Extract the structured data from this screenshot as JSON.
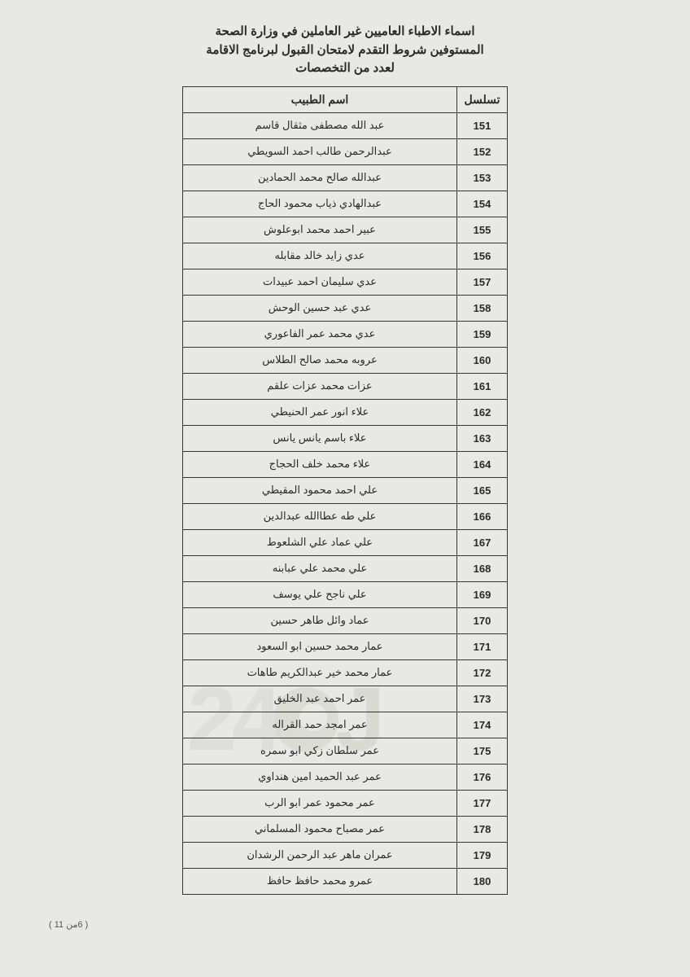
{
  "header": {
    "line1": "اسماء الاطباء العاميين غير العاملين في وزارة الصحة",
    "line2": "المستوفين شروط التقدم لامتحان القبول لبرنامج الاقامة",
    "line3": "لعدد من التخصصات"
  },
  "columns": {
    "seq": "تسلسل",
    "name": "اسم الطبيب"
  },
  "rows": [
    {
      "seq": "151",
      "name": "عبد الله مصطفى مثقال قاسم"
    },
    {
      "seq": "152",
      "name": "عبدالرحمن طالب احمد السويطي"
    },
    {
      "seq": "153",
      "name": "عبدالله صالح محمد الحمادين"
    },
    {
      "seq": "154",
      "name": "عبدالهادي ذياب محمود الحاج"
    },
    {
      "seq": "155",
      "name": "عبير احمد محمد ابوعلوش"
    },
    {
      "seq": "156",
      "name": "عدي زايد خالد مقابله"
    },
    {
      "seq": "157",
      "name": "عدي سليمان احمد عبيدات"
    },
    {
      "seq": "158",
      "name": "عدي عبد حسين الوحش"
    },
    {
      "seq": "159",
      "name": "عدي محمد عمر الفاعوري"
    },
    {
      "seq": "160",
      "name": "عروبه محمد صالح الطلاس"
    },
    {
      "seq": "161",
      "name": "عزات محمد عزات علقم"
    },
    {
      "seq": "162",
      "name": "علاء انور عمر الحنيطي"
    },
    {
      "seq": "163",
      "name": "علاء باسم يانس يانس"
    },
    {
      "seq": "164",
      "name": "علاء محمد خلف الحجاج"
    },
    {
      "seq": "165",
      "name": "علي احمد محمود المقيطي"
    },
    {
      "seq": "166",
      "name": "علي طه عطاالله عبدالدين"
    },
    {
      "seq": "167",
      "name": "علي عماد علي الشلعوط"
    },
    {
      "seq": "168",
      "name": "علي محمد علي عبابنه"
    },
    {
      "seq": "169",
      "name": "علي ناجح علي يوسف"
    },
    {
      "seq": "170",
      "name": "عماد وائل طاهر حسين"
    },
    {
      "seq": "171",
      "name": "عمار محمد حسين ابو السعود"
    },
    {
      "seq": "172",
      "name": "عمار محمد خير عبدالكريم طاهات"
    },
    {
      "seq": "173",
      "name": "عمر احمد عبد الخليق"
    },
    {
      "seq": "174",
      "name": "عمر امجد حمد القراله"
    },
    {
      "seq": "175",
      "name": "عمر سلطان زكي ابو سمره"
    },
    {
      "seq": "176",
      "name": "عمر عبد الحميد امين هنداوي"
    },
    {
      "seq": "177",
      "name": "عمر محمود عمر ابو الرب"
    },
    {
      "seq": "178",
      "name": "عمر مصباح محمود المسلماني"
    },
    {
      "seq": "179",
      "name": "عمران ماهر عبد الرحمن الرشدان"
    },
    {
      "seq": "180",
      "name": "عمرو محمد حافظ حافظ"
    }
  ],
  "pageNumber": "( 6من 11 )",
  "watermark": {
    "part1": "J",
    "part2": "24"
  }
}
